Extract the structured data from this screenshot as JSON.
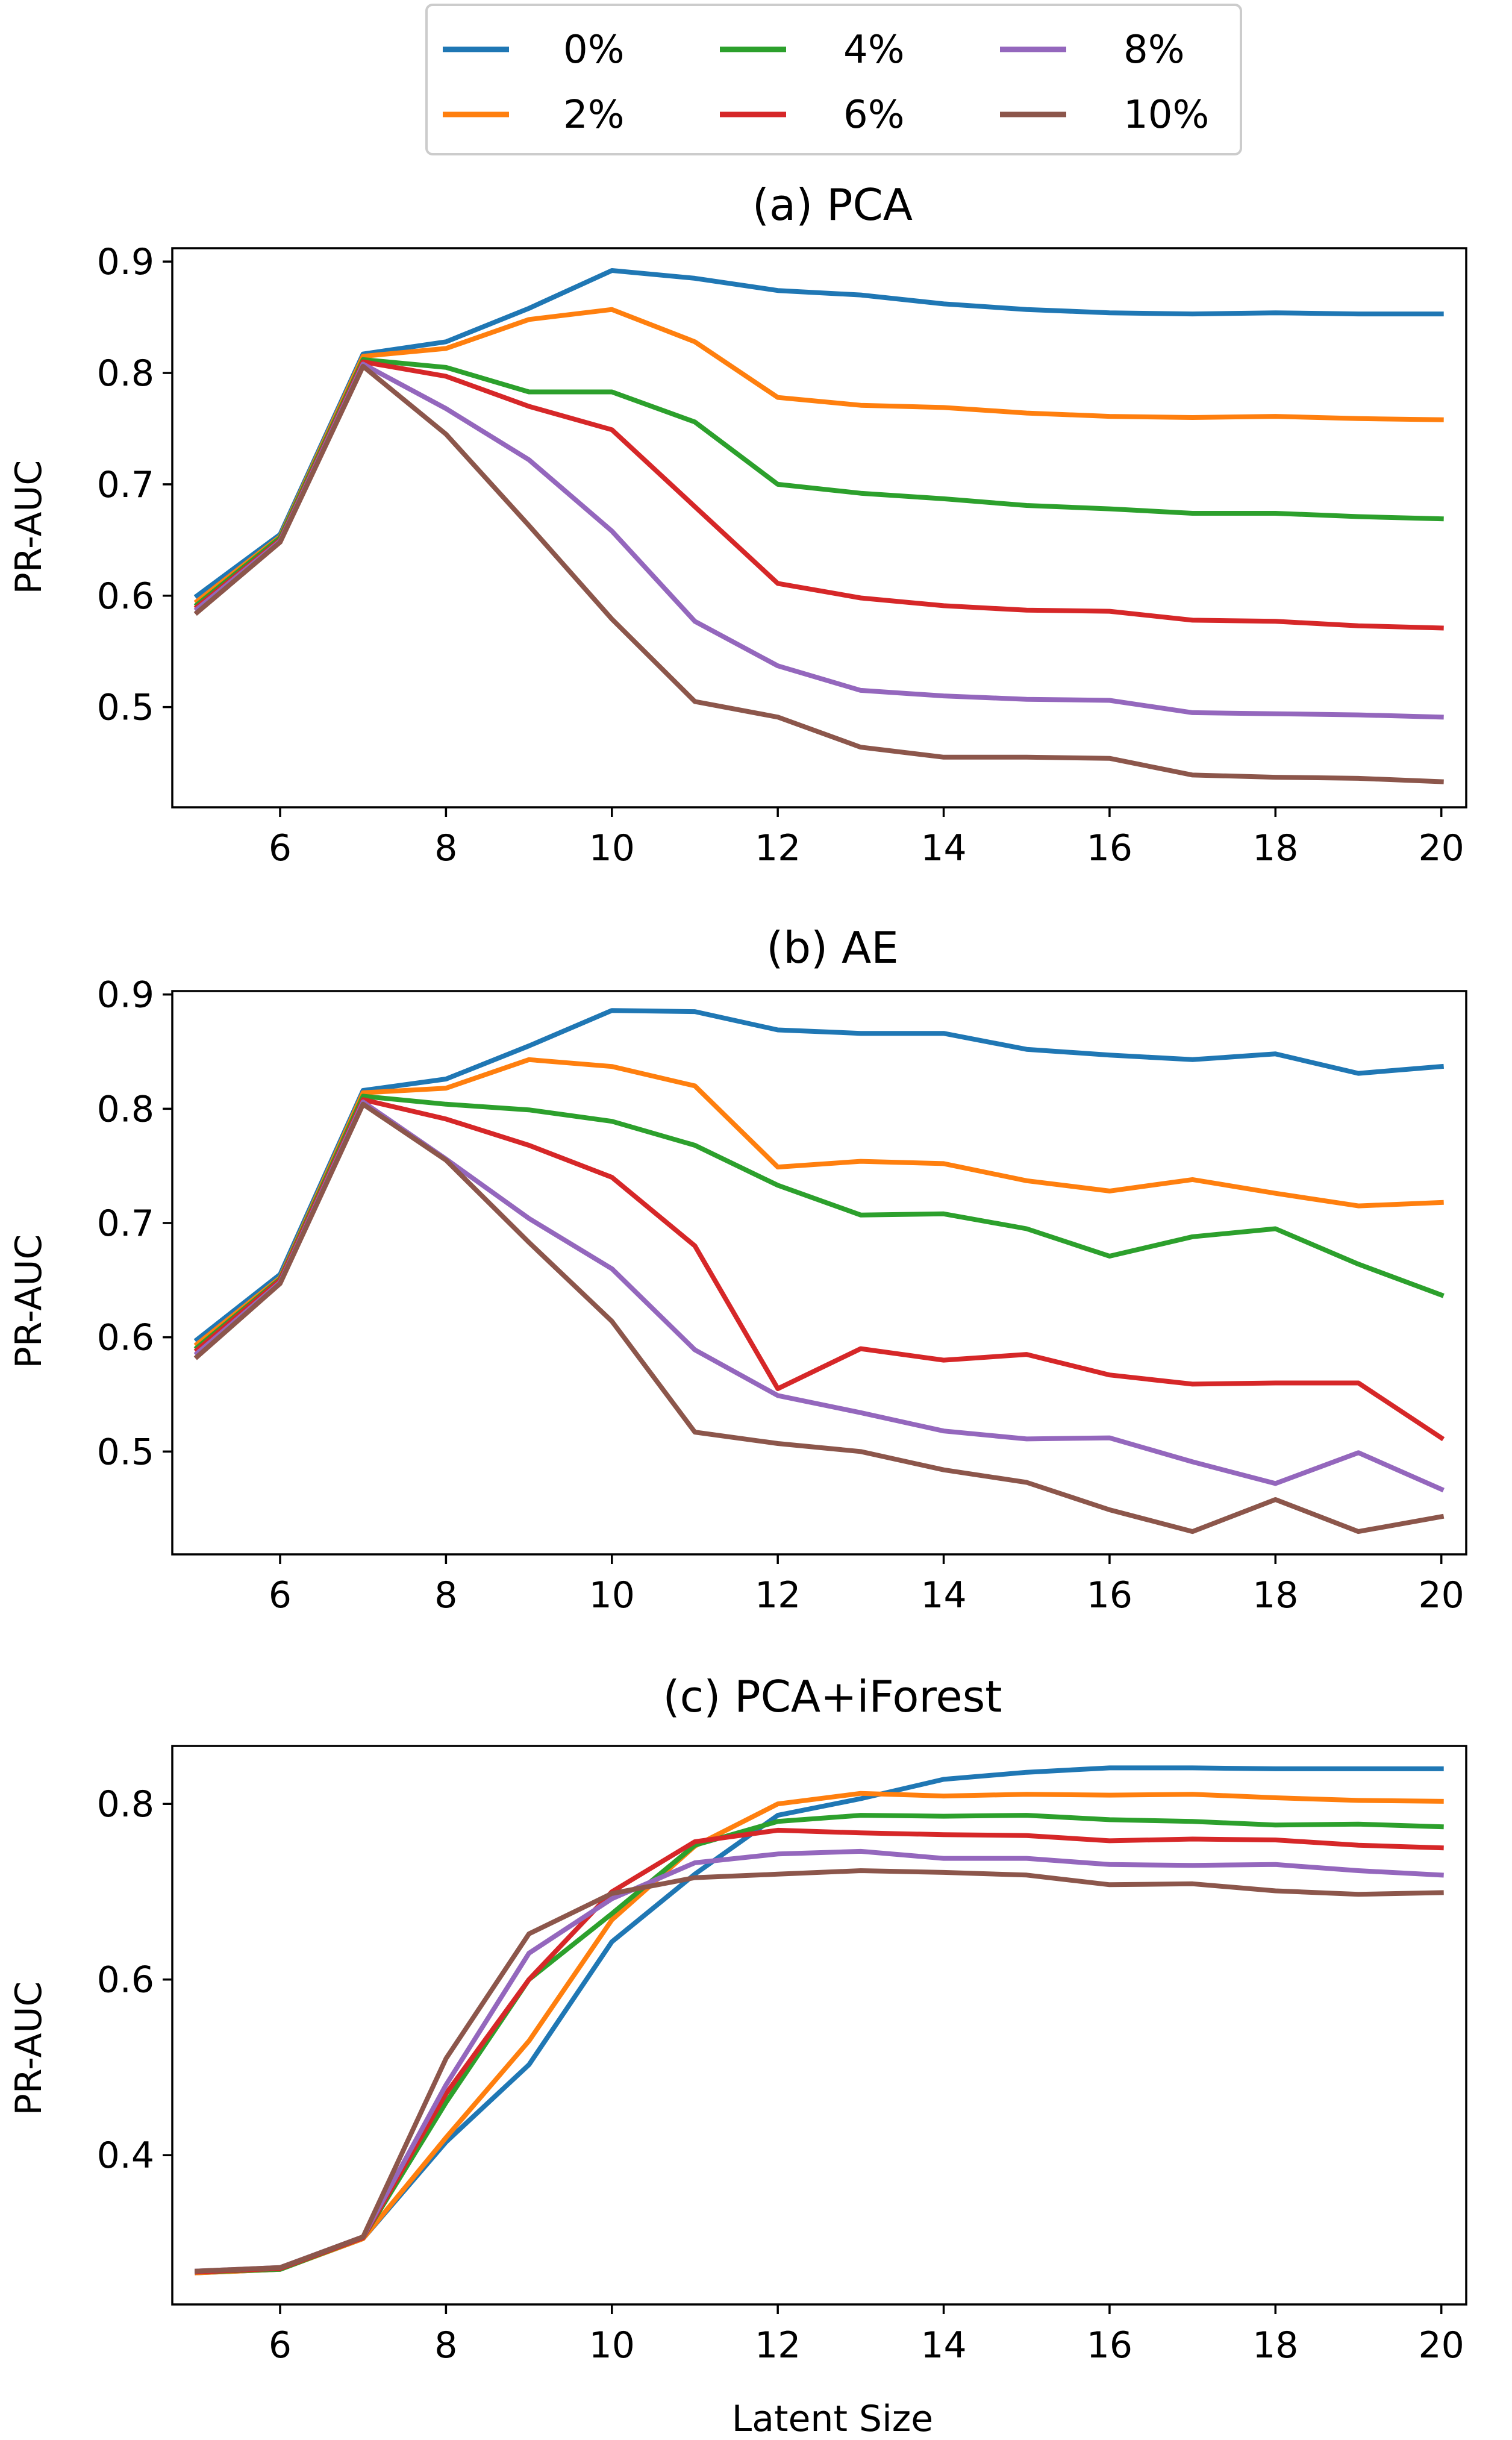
{
  "legend": {
    "entries": [
      {
        "label": "0%",
        "color": "#1f77b4"
      },
      {
        "label": "2%",
        "color": "#ff7f0e"
      },
      {
        "label": "4%",
        "color": "#2ca02c"
      },
      {
        "label": "6%",
        "color": "#d62728"
      },
      {
        "label": "8%",
        "color": "#9467bd"
      },
      {
        "label": "10%",
        "color": "#8c564b"
      }
    ]
  },
  "chart_data": [
    {
      "type": "line",
      "title": "(a) PCA",
      "xlabel": "",
      "ylabel": "PR-AUC",
      "xlim": [
        4.7,
        20.3
      ],
      "ylim": [
        0.41,
        0.912
      ],
      "x_ticks": [
        6,
        8,
        10,
        12,
        14,
        16,
        18,
        20
      ],
      "y_ticks": [
        0.5,
        0.6,
        0.7,
        0.8,
        0.9
      ],
      "x_tick_labels": [
        "6",
        "8",
        "10",
        "12",
        "14",
        "16",
        "18",
        "20"
      ],
      "y_tick_labels": [
        "0.5",
        "0.6",
        "0.7",
        "0.8",
        "0.9"
      ],
      "x": [
        5,
        6,
        7,
        8,
        9,
        10,
        11,
        12,
        13,
        14,
        15,
        16,
        17,
        18,
        19,
        20
      ],
      "series": [
        {
          "name": "0%",
          "values": [
            0.6,
            0.655,
            0.817,
            0.828,
            0.858,
            0.892,
            0.885,
            0.874,
            0.87,
            0.862,
            0.857,
            0.854,
            0.853,
            0.854,
            0.853,
            0.853
          ]
        },
        {
          "name": "2%",
          "values": [
            0.595,
            0.653,
            0.815,
            0.822,
            0.848,
            0.857,
            0.828,
            0.778,
            0.771,
            0.769,
            0.764,
            0.761,
            0.76,
            0.761,
            0.759,
            0.758
          ]
        },
        {
          "name": "4%",
          "values": [
            0.592,
            0.652,
            0.812,
            0.805,
            0.783,
            0.783,
            0.756,
            0.7,
            0.692,
            0.687,
            0.681,
            0.678,
            0.674,
            0.674,
            0.671,
            0.669
          ]
        },
        {
          "name": "6%",
          "values": [
            0.59,
            0.65,
            0.81,
            0.797,
            0.77,
            0.749,
            0.68,
            0.611,
            0.598,
            0.591,
            0.587,
            0.586,
            0.578,
            0.577,
            0.573,
            0.571
          ]
        },
        {
          "name": "8%",
          "values": [
            0.588,
            0.649,
            0.808,
            0.768,
            0.722,
            0.658,
            0.577,
            0.537,
            0.515,
            0.51,
            0.507,
            0.506,
            0.495,
            0.494,
            0.493,
            0.491
          ]
        },
        {
          "name": "10%",
          "values": [
            0.585,
            0.648,
            0.806,
            0.745,
            0.663,
            0.579,
            0.505,
            0.491,
            0.464,
            0.455,
            0.455,
            0.454,
            0.439,
            0.437,
            0.436,
            0.433
          ]
        }
      ]
    },
    {
      "type": "line",
      "title": "(b) AE",
      "xlabel": "",
      "ylabel": "PR-AUC",
      "xlim": [
        4.7,
        20.3
      ],
      "ylim": [
        0.41,
        0.903
      ],
      "x_ticks": [
        6,
        8,
        10,
        12,
        14,
        16,
        18,
        20
      ],
      "y_ticks": [
        0.5,
        0.6,
        0.7,
        0.8,
        0.9
      ],
      "x_tick_labels": [
        "6",
        "8",
        "10",
        "12",
        "14",
        "16",
        "18",
        "20"
      ],
      "y_tick_labels": [
        "0.5",
        "0.6",
        "0.7",
        "0.8",
        "0.9"
      ],
      "x": [
        5,
        6,
        7,
        8,
        9,
        10,
        11,
        12,
        13,
        14,
        15,
        16,
        17,
        18,
        19,
        20
      ],
      "series": [
        {
          "name": "0%",
          "values": [
            0.598,
            0.655,
            0.816,
            0.826,
            0.855,
            0.886,
            0.885,
            0.869,
            0.866,
            0.866,
            0.852,
            0.847,
            0.843,
            0.848,
            0.831,
            0.837
          ]
        },
        {
          "name": "2%",
          "values": [
            0.594,
            0.652,
            0.814,
            0.818,
            0.843,
            0.837,
            0.82,
            0.749,
            0.754,
            0.752,
            0.737,
            0.728,
            0.738,
            0.726,
            0.715,
            0.718
          ]
        },
        {
          "name": "4%",
          "values": [
            0.591,
            0.651,
            0.811,
            0.804,
            0.799,
            0.789,
            0.768,
            0.733,
            0.707,
            0.708,
            0.695,
            0.671,
            0.688,
            0.695,
            0.664,
            0.637
          ]
        },
        {
          "name": "6%",
          "values": [
            0.589,
            0.65,
            0.808,
            0.791,
            0.768,
            0.74,
            0.68,
            0.555,
            0.59,
            0.58,
            0.585,
            0.567,
            0.559,
            0.56,
            0.56,
            0.512
          ]
        },
        {
          "name": "8%",
          "values": [
            0.586,
            0.648,
            0.806,
            0.756,
            0.704,
            0.66,
            0.589,
            0.549,
            0.534,
            0.518,
            0.511,
            0.512,
            0.491,
            0.472,
            0.499,
            0.467
          ]
        },
        {
          "name": "10%",
          "values": [
            0.583,
            0.647,
            0.804,
            0.755,
            0.683,
            0.614,
            0.517,
            0.507,
            0.5,
            0.484,
            0.473,
            0.449,
            0.43,
            0.458,
            0.43,
            0.443
          ]
        }
      ]
    },
    {
      "type": "line",
      "title": "(c) PCA+iForest",
      "xlabel": "Latent Size",
      "ylabel": "PR-AUC",
      "xlim": [
        4.7,
        20.3
      ],
      "ylim": [
        0.23,
        0.866
      ],
      "x_ticks": [
        6,
        8,
        10,
        12,
        14,
        16,
        18,
        20
      ],
      "y_ticks": [
        0.4,
        0.6,
        0.8
      ],
      "x_tick_labels": [
        "6",
        "8",
        "10",
        "12",
        "14",
        "16",
        "18",
        "20"
      ],
      "y_tick_labels": [
        "0.4",
        "0.6",
        "0.8"
      ],
      "x": [
        5,
        6,
        7,
        8,
        9,
        10,
        11,
        12,
        13,
        14,
        15,
        16,
        17,
        18,
        19,
        20
      ],
      "series": [
        {
          "name": "0%",
          "values": [
            0.266,
            0.27,
            0.305,
            0.415,
            0.503,
            0.643,
            0.72,
            0.787,
            0.806,
            0.828,
            0.836,
            0.841,
            0.841,
            0.84,
            0.84,
            0.84
          ]
        },
        {
          "name": "2%",
          "values": [
            0.266,
            0.27,
            0.305,
            0.42,
            0.53,
            0.668,
            0.752,
            0.8,
            0.812,
            0.809,
            0.811,
            0.81,
            0.811,
            0.807,
            0.804,
            0.803
          ]
        },
        {
          "name": "4%",
          "values": [
            0.267,
            0.27,
            0.306,
            0.46,
            0.6,
            0.675,
            0.753,
            0.78,
            0.787,
            0.786,
            0.787,
            0.782,
            0.78,
            0.776,
            0.777,
            0.774
          ]
        },
        {
          "name": "6%",
          "values": [
            0.267,
            0.271,
            0.306,
            0.47,
            0.6,
            0.7,
            0.757,
            0.77,
            0.767,
            0.765,
            0.764,
            0.758,
            0.76,
            0.759,
            0.753,
            0.75
          ]
        },
        {
          "name": "8%",
          "values": [
            0.268,
            0.272,
            0.307,
            0.48,
            0.63,
            0.692,
            0.733,
            0.743,
            0.746,
            0.738,
            0.738,
            0.731,
            0.73,
            0.731,
            0.724,
            0.719
          ]
        },
        {
          "name": "10%",
          "values": [
            0.268,
            0.272,
            0.307,
            0.51,
            0.652,
            0.698,
            0.716,
            0.72,
            0.724,
            0.722,
            0.719,
            0.708,
            0.709,
            0.701,
            0.697,
            0.699
          ]
        }
      ]
    }
  ]
}
